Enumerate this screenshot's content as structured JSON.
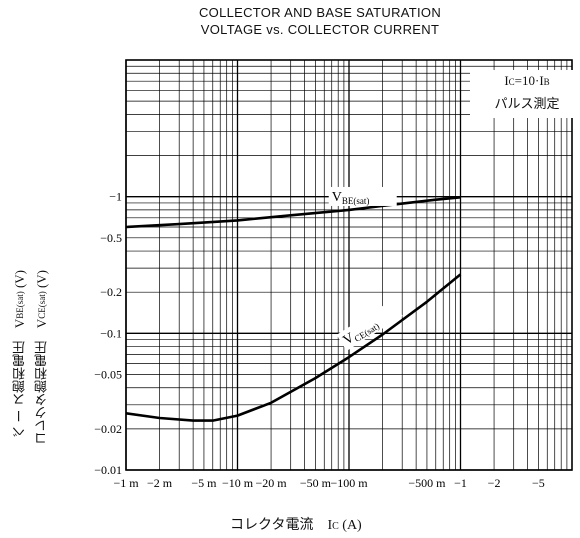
{
  "chart_data": {
    "type": "line",
    "title": [
      "COLLECTOR AND BASE SATURATION",
      "VOLTAGE vs. COLLECTOR CURRENT"
    ],
    "xlabel": "コレクタ電流　I",
    "xlabel_sub": "C",
    "xlabel_unit": "(A)",
    "ylabel_line1": "ベ ー ス飽和電圧　V",
    "ylabel_line1_sub": "BE(sat)",
    "ylabel_line1_unit": "(V)",
    "ylabel_line2": "コレクタ飽和電圧　V",
    "ylabel_line2_sub": "CE(sat)",
    "ylabel_line2_unit": "(V)",
    "x_scale": "log",
    "y_scale": "log",
    "xlim": [
      0.001,
      10
    ],
    "ylim": [
      0.01,
      10
    ],
    "grid": true,
    "x_ticks": [
      {
        "v": 0.001,
        "label": "−1 m"
      },
      {
        "v": 0.002,
        "label": "−2 m"
      },
      {
        "v": 0.005,
        "label": "−5 m"
      },
      {
        "v": 0.01,
        "label": "−10 m"
      },
      {
        "v": 0.02,
        "label": "−20 m"
      },
      {
        "v": 0.05,
        "label": "−50 m"
      },
      {
        "v": 0.1,
        "label": "−100 m"
      },
      {
        "v": 0.5,
        "label": "−500 m"
      },
      {
        "v": 1,
        "label": "−1"
      },
      {
        "v": 2,
        "label": "−2"
      },
      {
        "v": 5,
        "label": "−5"
      }
    ],
    "y_ticks": [
      {
        "v": 1,
        "label": "−1"
      },
      {
        "v": 0.5,
        "label": "−0.5"
      },
      {
        "v": 0.2,
        "label": "−0.2"
      },
      {
        "v": 0.1,
        "label": "−0.1"
      },
      {
        "v": 0.05,
        "label": "−0.05"
      },
      {
        "v": 0.02,
        "label": "−0.02"
      },
      {
        "v": 0.01,
        "label": "−0.01"
      }
    ],
    "annotation": {
      "line1": "I",
      "line1_sub": "C",
      "line1_rest": "=10·I",
      "line1_sub2": "B",
      "line2": "パルス測定"
    },
    "series": [
      {
        "name": "V",
        "name_sub": "BE(sat)",
        "x": [
          0.001,
          0.003,
          0.01,
          0.03,
          0.1,
          0.3,
          0.6,
          1.0
        ],
        "y": [
          0.6,
          0.63,
          0.67,
          0.73,
          0.8,
          0.89,
          0.95,
          0.99
        ]
      },
      {
        "name": "V",
        "name_sub": "CE(sat)",
        "x": [
          0.001,
          0.002,
          0.004,
          0.006,
          0.01,
          0.02,
          0.05,
          0.1,
          0.2,
          0.5,
          1.0
        ],
        "y": [
          0.026,
          0.024,
          0.023,
          0.023,
          0.025,
          0.031,
          0.047,
          0.067,
          0.098,
          0.17,
          0.27
        ]
      }
    ]
  }
}
